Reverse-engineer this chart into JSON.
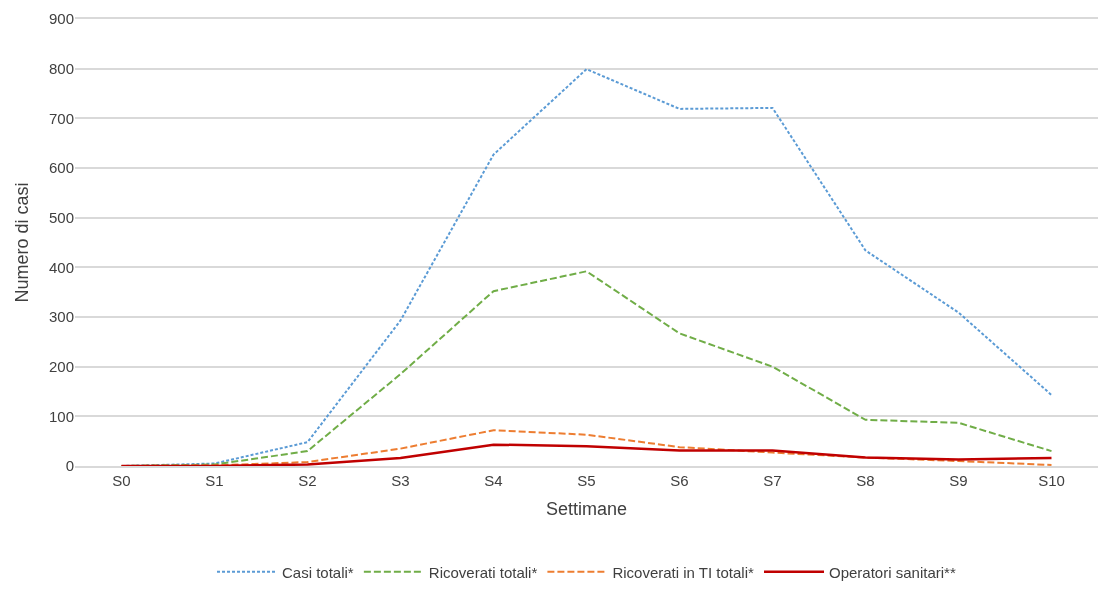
{
  "chart_data": {
    "type": "line",
    "xlabel": "Settimane",
    "ylabel": "Numero di casi",
    "categories": [
      "S0",
      "S1",
      "S2",
      "S3",
      "S4",
      "S5",
      "S6",
      "S7",
      "S8",
      "S9",
      "S10"
    ],
    "ylim": [
      0,
      900
    ],
    "yticks": [
      0,
      100,
      200,
      300,
      400,
      500,
      600,
      700,
      800,
      900
    ],
    "grid": "y",
    "legend": "bottom",
    "marker": "none",
    "series": [
      {
        "name": "Casi totali*",
        "color": "#5b9bd5",
        "line_style": "dotted",
        "values": [
          0,
          5,
          48,
          293,
          627,
          799,
          719,
          721,
          434,
          309,
          143
        ]
      },
      {
        "name": "Ricoverati totali*",
        "color": "#70ad47",
        "line_style": "dashed",
        "values": [
          0,
          3,
          30,
          185,
          352,
          392,
          267,
          200,
          93,
          87,
          30
        ]
      },
      {
        "name": "Ricoverati in TI totali*",
        "color": "#ed7d31",
        "line_style": "dashed",
        "values": [
          0,
          1,
          8,
          35,
          72,
          63,
          38,
          27,
          17,
          10,
          2
        ]
      },
      {
        "name": "Operatori sanitari**",
        "color": "#c00000",
        "line_style": "solid",
        "values": [
          0,
          0,
          3,
          16,
          43,
          40,
          31,
          31,
          17,
          13,
          16
        ]
      }
    ]
  }
}
